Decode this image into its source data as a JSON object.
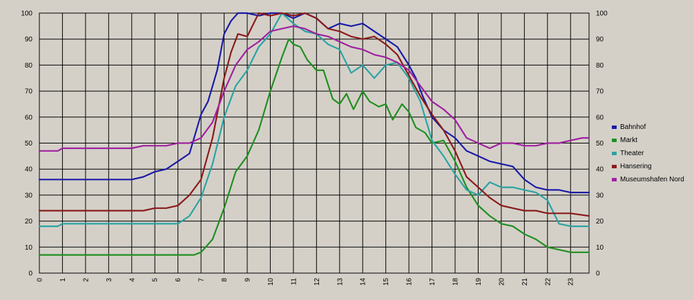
{
  "chart_data": {
    "type": "line",
    "title": "",
    "xlabel": "",
    "ylabel": "",
    "ylim": [
      0,
      100
    ],
    "xlim": [
      0,
      23.8
    ],
    "grid": true,
    "legend_position": "right",
    "y_ticks": [
      "0",
      "10",
      "20",
      "30",
      "40",
      "50",
      "60",
      "70",
      "80",
      "90",
      "100"
    ],
    "x_ticks": [
      "0",
      "1",
      "2",
      "3",
      "4",
      "5",
      "6",
      "7",
      "8",
      "9",
      "10",
      "11",
      "12",
      "13",
      "14",
      "15",
      "16",
      "17",
      "18",
      "19",
      "20",
      "21",
      "22",
      "23"
    ],
    "colors": {
      "background": "#d4d0c8",
      "plot_border": "#000000",
      "grid": "#000000"
    },
    "series": [
      {
        "name": "Bahnhof",
        "color": "#1a1aa6",
        "x": [
          0,
          1,
          2,
          3,
          4,
          4.5,
          5,
          5.5,
          6,
          6.5,
          7,
          7.3,
          7.7,
          8,
          8.3,
          8.6,
          9,
          9.5,
          10,
          10.5,
          11,
          11.5,
          12,
          12.5,
          13,
          13.5,
          14,
          14.5,
          15,
          15.5,
          16,
          16.3,
          16.6,
          17,
          17.5,
          18,
          18.5,
          19,
          19.5,
          20,
          20.5,
          21,
          21.5,
          22,
          22.5,
          23,
          23.8
        ],
        "y": [
          36,
          36,
          36,
          36,
          36,
          37,
          39,
          40,
          43,
          46,
          61,
          66,
          78,
          92,
          97,
          100,
          100,
          99,
          100,
          100,
          98,
          100,
          98,
          94,
          96,
          95,
          96,
          93,
          90,
          87,
          80,
          75,
          68,
          60,
          55,
          52,
          47,
          45,
          43,
          42,
          41,
          36,
          33,
          32,
          32,
          31,
          31
        ]
      },
      {
        "name": "Markt",
        "color": "#1f8f1f",
        "x": [
          0,
          1,
          2,
          3,
          4,
          5,
          6,
          6.7,
          7,
          7.5,
          8,
          8.5,
          9,
          9.5,
          10,
          10.5,
          10.8,
          11,
          11.3,
          11.6,
          12,
          12.3,
          12.7,
          13,
          13.3,
          13.6,
          14,
          14.3,
          14.7,
          15,
          15.3,
          15.7,
          16,
          16.3,
          16.7,
          17,
          17.5,
          18,
          18.5,
          19,
          19.5,
          20,
          20.5,
          21,
          21.5,
          22,
          22.5,
          23,
          23.8
        ],
        "y": [
          7,
          7,
          7,
          7,
          7,
          7,
          7,
          7,
          8,
          13,
          25,
          39,
          45,
          55,
          70,
          83,
          90,
          88,
          87,
          82,
          78,
          78,
          67,
          65,
          69,
          63,
          70,
          66,
          64,
          65,
          59,
          65,
          62,
          56,
          54,
          50,
          51,
          43,
          33,
          26,
          22,
          19,
          18,
          15,
          13,
          10,
          9,
          8,
          8
        ]
      },
      {
        "name": "Theater",
        "color": "#2aa3a3",
        "x": [
          0,
          0.8,
          1,
          2,
          3,
          4,
          5,
          6,
          6.5,
          7,
          7.5,
          8,
          8.5,
          9,
          9.5,
          10,
          10.5,
          11,
          11.5,
          12,
          12.5,
          13,
          13.5,
          14,
          14.5,
          15,
          15.5,
          16,
          16.5,
          17,
          17.5,
          18,
          18.5,
          19,
          19.5,
          20,
          20.5,
          21,
          21.5,
          22,
          22.5,
          23,
          23.8
        ],
        "y": [
          18,
          18,
          19,
          19,
          19,
          19,
          19,
          19,
          22,
          29,
          42,
          60,
          72,
          78,
          87,
          92,
          100,
          96,
          93,
          92,
          88,
          86,
          77,
          80,
          75,
          80,
          81,
          75,
          66,
          51,
          45,
          38,
          32,
          30,
          35,
          33,
          33,
          32,
          31,
          28,
          19,
          18,
          18
        ]
      },
      {
        "name": "Hansering",
        "color": "#8b1a1a",
        "x": [
          0,
          1,
          2,
          3,
          4,
          4.5,
          5,
          5.5,
          6,
          6.5,
          7,
          7.5,
          8,
          8.3,
          8.6,
          9,
          9.5,
          10,
          10.5,
          11,
          11.5,
          12,
          12.5,
          13,
          13.5,
          14,
          14.5,
          15,
          15.5,
          16,
          16.5,
          17,
          17.5,
          18,
          18.5,
          19,
          19.5,
          20,
          20.5,
          21,
          21.5,
          22,
          22.5,
          23,
          23.8
        ],
        "y": [
          24,
          24,
          24,
          24,
          24,
          24,
          25,
          25,
          26,
          30,
          36,
          52,
          75,
          85,
          92,
          91,
          100,
          99,
          100,
          99,
          100,
          98,
          94,
          93,
          91,
          90,
          91,
          88,
          84,
          76,
          68,
          61,
          55,
          47,
          37,
          33,
          29,
          26,
          25,
          24,
          24,
          23,
          23,
          23,
          22
        ]
      },
      {
        "name": "Museumshafen Nord",
        "color": "#a020a0",
        "x": [
          0,
          0.8,
          1,
          2,
          3,
          4,
          4.5,
          5,
          5.5,
          6,
          6.5,
          7,
          7.5,
          8,
          8.5,
          9,
          9.5,
          10,
          10.5,
          11,
          11.5,
          12,
          12.5,
          13,
          13.5,
          14,
          14.5,
          15,
          15.5,
          16,
          16.5,
          17,
          17.5,
          18,
          18.5,
          19,
          19.5,
          20,
          20.5,
          21,
          21.5,
          22,
          22.5,
          23,
          23.5,
          23.8
        ],
        "y": [
          47,
          47,
          48,
          48,
          48,
          48,
          49,
          49,
          49,
          50,
          50,
          52,
          58,
          70,
          80,
          86,
          89,
          93,
          94,
          95,
          94,
          92,
          91,
          89,
          87,
          86,
          84,
          83,
          81,
          78,
          72,
          66,
          63,
          59,
          52,
          50,
          48,
          50,
          50,
          49,
          49,
          50,
          50,
          51,
          52,
          52
        ]
      }
    ]
  }
}
